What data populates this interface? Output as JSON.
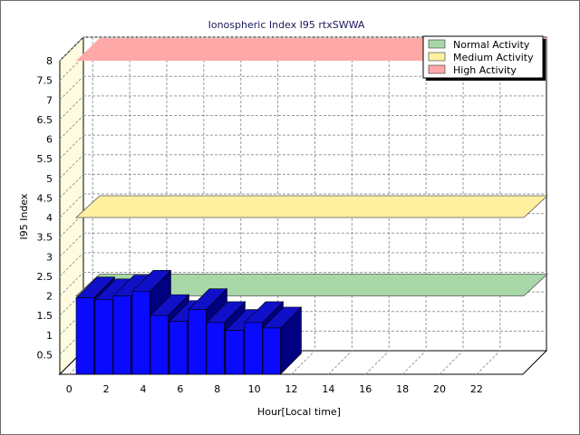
{
  "chart_data": {
    "type": "bar",
    "title": "Ionospheric Index I95 rtxSWWA",
    "xlabel": "Hour[Local time]",
    "ylabel": "I95 Index",
    "x": [
      0,
      1,
      2,
      3,
      4,
      5,
      6,
      7,
      8,
      9,
      10
    ],
    "values": [
      1.95,
      1.9,
      2.0,
      2.12,
      1.5,
      1.35,
      1.65,
      1.32,
      1.12,
      1.32,
      1.18
    ],
    "bar_color": "#0a0aff",
    "ylim": [
      0,
      8
    ],
    "xlim": [
      -0.5,
      24.5
    ],
    "x_ticks": [
      "0",
      "2",
      "4",
      "6",
      "8",
      "10",
      "12",
      "14",
      "16",
      "18",
      "20",
      "22"
    ],
    "y_ticks": [
      "0.5",
      "1",
      "1.5",
      "2",
      "2.5",
      "3",
      "3.5",
      "4",
      "4.5",
      "5",
      "5.5",
      "6",
      "6.5",
      "7",
      "7.5",
      "8"
    ],
    "grid": true,
    "legend_position": "top-right",
    "bands": [
      {
        "name": "Normal Activity",
        "value": 2.0,
        "color": "#a8d8a8"
      },
      {
        "name": "Medium Activity",
        "value": 4.0,
        "color": "#fff0a0"
      },
      {
        "name": "High Activity",
        "value": 8.0,
        "color": "#ffa8a8"
      }
    ]
  }
}
